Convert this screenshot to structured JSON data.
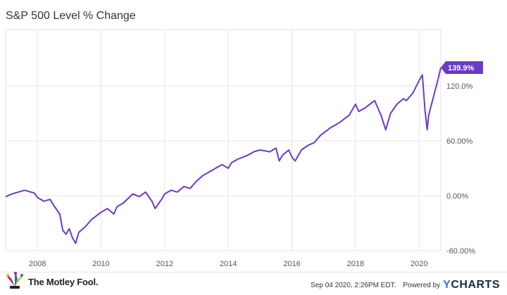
{
  "header": {
    "title": "S&P 500 Level % Change"
  },
  "footer": {
    "brand": "The Motley Fool.",
    "timestamp": "Sep 04 2020, 2:26PM EDT.",
    "powered_by": "Powered by",
    "ycharts_y": "Y",
    "ycharts_rest": "CHARTS"
  },
  "chart_data": {
    "type": "line",
    "title": "S&P 500 Level % Change",
    "xlabel": "",
    "ylabel": "",
    "x_ticks": [
      "2008",
      "2010",
      "2012",
      "2014",
      "2016",
      "2018",
      "2020"
    ],
    "y_ticks": [
      "-60.00%",
      "0.00%",
      "60.00%",
      "120.0%"
    ],
    "xlim": [
      2007.0,
      2020.68
    ],
    "ylim": [
      -60,
      180
    ],
    "grid": true,
    "color": "#6a3bc7",
    "series": [
      {
        "end_label": "139.9%",
        "x": [
          2007.0,
          2007.2,
          2007.4,
          2007.6,
          2007.8,
          2007.9,
          2008.0,
          2008.2,
          2008.4,
          2008.5,
          2008.7,
          2008.8,
          2008.9,
          2009.0,
          2009.1,
          2009.2,
          2009.3,
          2009.5,
          2009.7,
          2010.0,
          2010.2,
          2010.4,
          2010.5,
          2010.7,
          2011.0,
          2011.2,
          2011.4,
          2011.6,
          2011.7,
          2011.9,
          2012.0,
          2012.2,
          2012.4,
          2012.6,
          2012.8,
          2013.0,
          2013.2,
          2013.5,
          2013.8,
          2014.0,
          2014.1,
          2014.3,
          2014.6,
          2014.8,
          2015.0,
          2015.3,
          2015.5,
          2015.6,
          2015.7,
          2015.9,
          2016.0,
          2016.1,
          2016.3,
          2016.5,
          2016.7,
          2016.9,
          2017.2,
          2017.5,
          2017.8,
          2018.0,
          2018.1,
          2018.3,
          2018.6,
          2018.8,
          2018.95,
          2019.1,
          2019.3,
          2019.5,
          2019.6,
          2019.8,
          2020.0,
          2020.1,
          2020.18,
          2020.25,
          2020.3,
          2020.5,
          2020.6,
          2020.68
        ],
        "y": [
          -1,
          2,
          4,
          6,
          4,
          3,
          -2,
          -6,
          -4,
          -10,
          -20,
          -38,
          -42,
          -36,
          -46,
          -52,
          -40,
          -34,
          -26,
          -18,
          -14,
          -20,
          -12,
          -8,
          2,
          -1,
          4,
          -6,
          -14,
          -4,
          2,
          6,
          4,
          10,
          8,
          16,
          22,
          28,
          34,
          30,
          36,
          40,
          44,
          48,
          50,
          48,
          52,
          38,
          44,
          50,
          42,
          38,
          50,
          55,
          58,
          66,
          74,
          80,
          88,
          100,
          92,
          96,
          104,
          88,
          72,
          90,
          100,
          106,
          104,
          112,
          126,
          132,
          95,
          72,
          88,
          115,
          128,
          140
        ]
      }
    ]
  }
}
